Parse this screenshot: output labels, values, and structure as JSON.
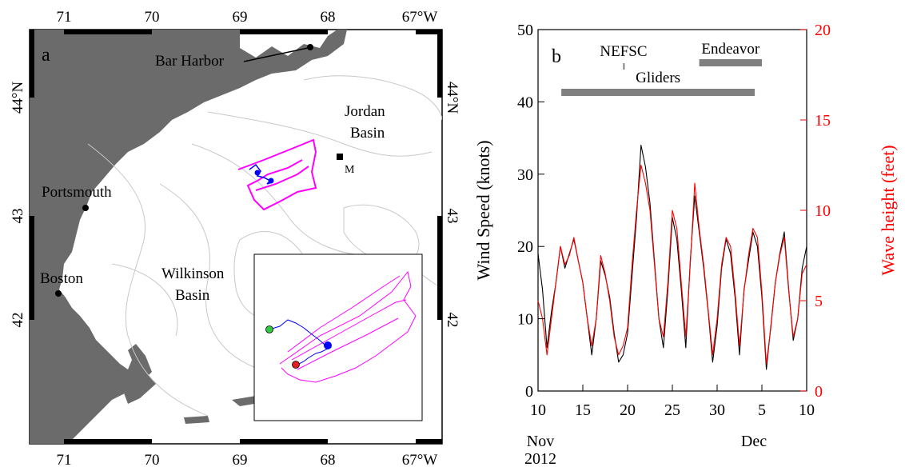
{
  "panel_a": {
    "label": "a",
    "lon_ticks": [
      "71",
      "70",
      "69",
      "68",
      "67°W"
    ],
    "lat_ticks_left": [
      "44°N",
      "43",
      "42"
    ],
    "lat_ticks_right": [
      "44°N",
      "43",
      "42"
    ],
    "places": {
      "bar_harbor": "Bar Harbor",
      "portsmouth": "Portsmouth",
      "boston": "Boston",
      "jordan_basin_line1": "Jordan",
      "jordan_basin_line2": "Basin",
      "wilkinson_basin_line1": "Wilkinson",
      "wilkinson_basin_line2": "Basin",
      "mooring": "M"
    },
    "colors": {
      "land": "#6b6b6b",
      "bathymetry": "#c8c8c8",
      "glider_track_planned": "#ff00ff",
      "glider_track_actual": "#0000ff",
      "start_marker": "#2ecc40",
      "end_marker": "#e02020"
    }
  },
  "chart_data": {
    "type": "line",
    "panel_label": "b",
    "xlabel_month_1": "Nov",
    "xlabel_year": "2012",
    "xlabel_month_2": "Dec",
    "x_tick_labels": [
      "10",
      "15",
      "20",
      "25",
      "30",
      "5",
      "10"
    ],
    "x_ticks_days": [
      0,
      5,
      10,
      15,
      20,
      25,
      30
    ],
    "xlim_days": [
      0,
      30
    ],
    "ylabel_left": "Wind Speed (knots)",
    "ylabel_right": "Wave height (feet)",
    "ylim_left": [
      0,
      50
    ],
    "ylim_right": [
      0,
      20
    ],
    "y_ticks_left": [
      0,
      10,
      20,
      30,
      40,
      50
    ],
    "y_ticks_right": [
      0,
      5,
      10,
      15,
      20
    ],
    "grid": false,
    "colors": {
      "wind": "#000000",
      "wave": "#ff0000",
      "bars": "#808080"
    },
    "series": [
      {
        "axis": "left",
        "x": [
          0,
          0.5,
          1,
          1.5,
          2,
          2.5,
          3,
          3.5,
          4,
          4.5,
          5,
          5.5,
          6,
          6.5,
          7,
          7.5,
          8,
          8.5,
          9,
          9.5,
          10,
          10.5,
          11,
          11.5,
          12,
          12.5,
          13,
          13.5,
          14,
          14.5,
          15,
          15.5,
          16,
          16.5,
          17,
          17.5,
          18,
          18.5,
          19,
          19.5,
          20,
          20.5,
          21,
          21.5,
          22,
          22.5,
          23,
          23.5,
          24,
          24.5,
          25,
          25.5,
          26,
          26.5,
          27,
          27.5,
          28,
          28.5,
          29,
          29.5,
          30
        ],
        "values": [
          19,
          14,
          6,
          11,
          15,
          20,
          17,
          19,
          21,
          18,
          15,
          10,
          5,
          10,
          18,
          16,
          13,
          8,
          4,
          5,
          8,
          16,
          24,
          34,
          31,
          26,
          18,
          10,
          6,
          14,
          24,
          21,
          14,
          6,
          18,
          27,
          22,
          17,
          11,
          4,
          9,
          17,
          21,
          19,
          13,
          5,
          14,
          18,
          22,
          20,
          13,
          3,
          9,
          15,
          19,
          22,
          14,
          7,
          10,
          17,
          20
        ]
      },
      {
        "axis": "right",
        "x": [
          0,
          0.5,
          1,
          1.5,
          2,
          2.5,
          3,
          3.5,
          4,
          4.5,
          5,
          5.5,
          6,
          6.5,
          7,
          7.5,
          8,
          8.5,
          9,
          9.5,
          10,
          10.5,
          11,
          11.5,
          12,
          12.5,
          13,
          13.5,
          14,
          14.5,
          15,
          15.5,
          16,
          16.5,
          17,
          17.5,
          18,
          18.5,
          19,
          19.5,
          20,
          20.5,
          21,
          21.5,
          22,
          22.5,
          23,
          23.5,
          24,
          24.5,
          25,
          25.5,
          26,
          26.5,
          27,
          27.5,
          28,
          28.5,
          29,
          29.5,
          30
        ],
        "values": [
          5,
          4,
          2,
          4,
          6,
          8,
          7,
          7.5,
          8.5,
          7.2,
          6,
          4,
          2.5,
          4,
          7.5,
          6.5,
          5,
          3,
          2,
          2.5,
          3.5,
          7,
          10,
          12.5,
          11.5,
          10,
          7,
          4,
          3,
          6,
          10,
          9,
          6,
          3,
          7,
          11.5,
          9,
          7,
          4.5,
          2,
          4,
          7,
          8.5,
          8,
          5.5,
          2.5,
          5.5,
          7.5,
          9,
          8.5,
          5.5,
          1.5,
          3.5,
          6,
          7.5,
          8.5,
          5.5,
          3,
          4,
          6.5,
          7
        ]
      }
    ],
    "annotations": [
      {
        "label": "NEFSC",
        "start_day": 9.5,
        "end_day": 9.6
      },
      {
        "label": "Endeavor",
        "start_day": 18,
        "end_day": 25
      },
      {
        "label": "Gliders",
        "start_day": 2.6,
        "end_day": 24.2
      }
    ]
  }
}
